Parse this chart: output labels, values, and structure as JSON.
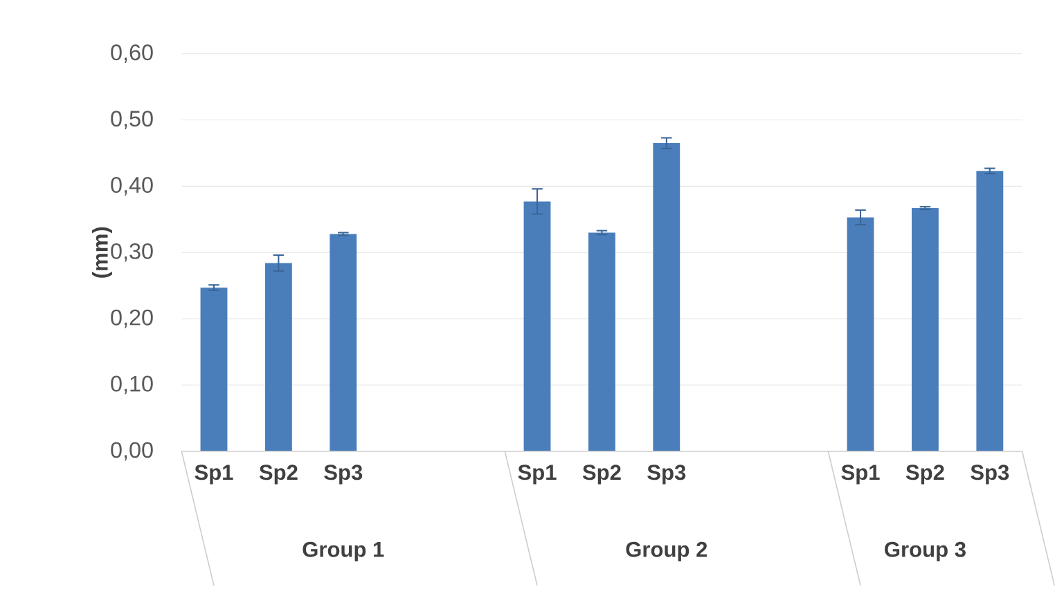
{
  "chart_data": {
    "type": "bar",
    "ylabel": "(mm)",
    "categories": [
      "Sp1",
      "Sp2",
      "Sp3",
      null,
      null,
      "Sp1",
      "Sp2",
      "Sp3",
      null,
      null,
      "Sp1",
      "Sp2",
      "Sp3"
    ],
    "values": [
      0.247,
      0.284,
      0.328,
      null,
      null,
      0.377,
      0.33,
      0.465,
      null,
      null,
      0.353,
      0.367,
      0.423
    ],
    "errors": [
      0.004,
      0.012,
      0.002,
      null,
      null,
      0.019,
      0.003,
      0.008,
      null,
      null,
      0.011,
      0.002,
      0.004
    ],
    "color": "#4a7ebb",
    "ylim": [
      0,
      0.6
    ],
    "yticks": [
      {
        "value": 0,
        "label": "0,00"
      },
      {
        "value": 0.1,
        "label": "0,10"
      },
      {
        "value": 0.2,
        "label": "0,20"
      },
      {
        "value": 0.3,
        "label": "0,30"
      },
      {
        "value": 0.4,
        "label": "0,40"
      },
      {
        "value": 0.5,
        "label": "0,50"
      },
      {
        "value": 0.6,
        "label": "0,60"
      }
    ],
    "grid": "y",
    "annotations": [
      "Group 1",
      "Group 2",
      "Group 3"
    ]
  }
}
